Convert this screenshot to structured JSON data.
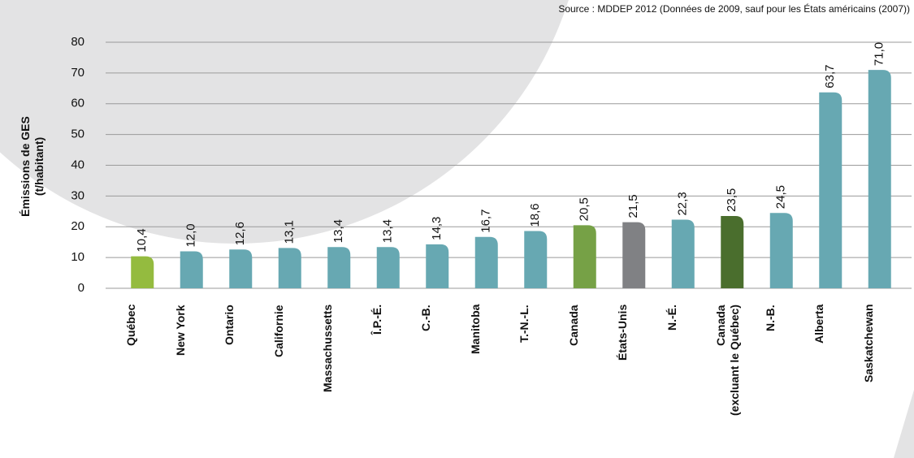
{
  "chart_data": {
    "type": "bar",
    "source": "Source : MDDEP 2012 (Données de 2009, sauf pour les États américains (2007))",
    "y_label": "Émissions de GES\n(t/habitant)",
    "categories": [
      "Québec",
      "New York",
      "Ontario",
      "Californie",
      "Massachussetts",
      "Î.P.-É.",
      "C.-B.",
      "Manitoba",
      "T.-N.-L.",
      "Canada",
      "États-Unis",
      "N.-É.",
      "Canada\n(excluant le Québec)",
      "N.-B.",
      "Alberta",
      "Saskatchewan"
    ],
    "values": [
      10.4,
      12.0,
      12.6,
      13.1,
      13.4,
      13.4,
      14.3,
      16.7,
      18.6,
      20.5,
      21.5,
      22.3,
      23.5,
      24.5,
      63.7,
      71.0
    ],
    "value_labels": [
      "10,4",
      "12,0",
      "12,6",
      "13,1",
      "13,4",
      "13,4",
      "14,3",
      "16,7",
      "18,6",
      "20,5",
      "21,5",
      "22,3",
      "23,5",
      "24,5",
      "63,7",
      "71,0"
    ],
    "colors": [
      "#94bb3f",
      "#67a8b2",
      "#67a8b2",
      "#67a8b2",
      "#67a8b2",
      "#67a8b2",
      "#67a8b2",
      "#67a8b2",
      "#67a8b2",
      "#76a146",
      "#808184",
      "#67a8b2",
      "#4a6e2d",
      "#67a8b2",
      "#67a8b2",
      "#67a8b2"
    ],
    "ylim": [
      0,
      80
    ],
    "yticks": [
      0,
      10,
      20,
      30,
      40,
      50,
      60,
      70,
      80
    ],
    "grid": true
  }
}
